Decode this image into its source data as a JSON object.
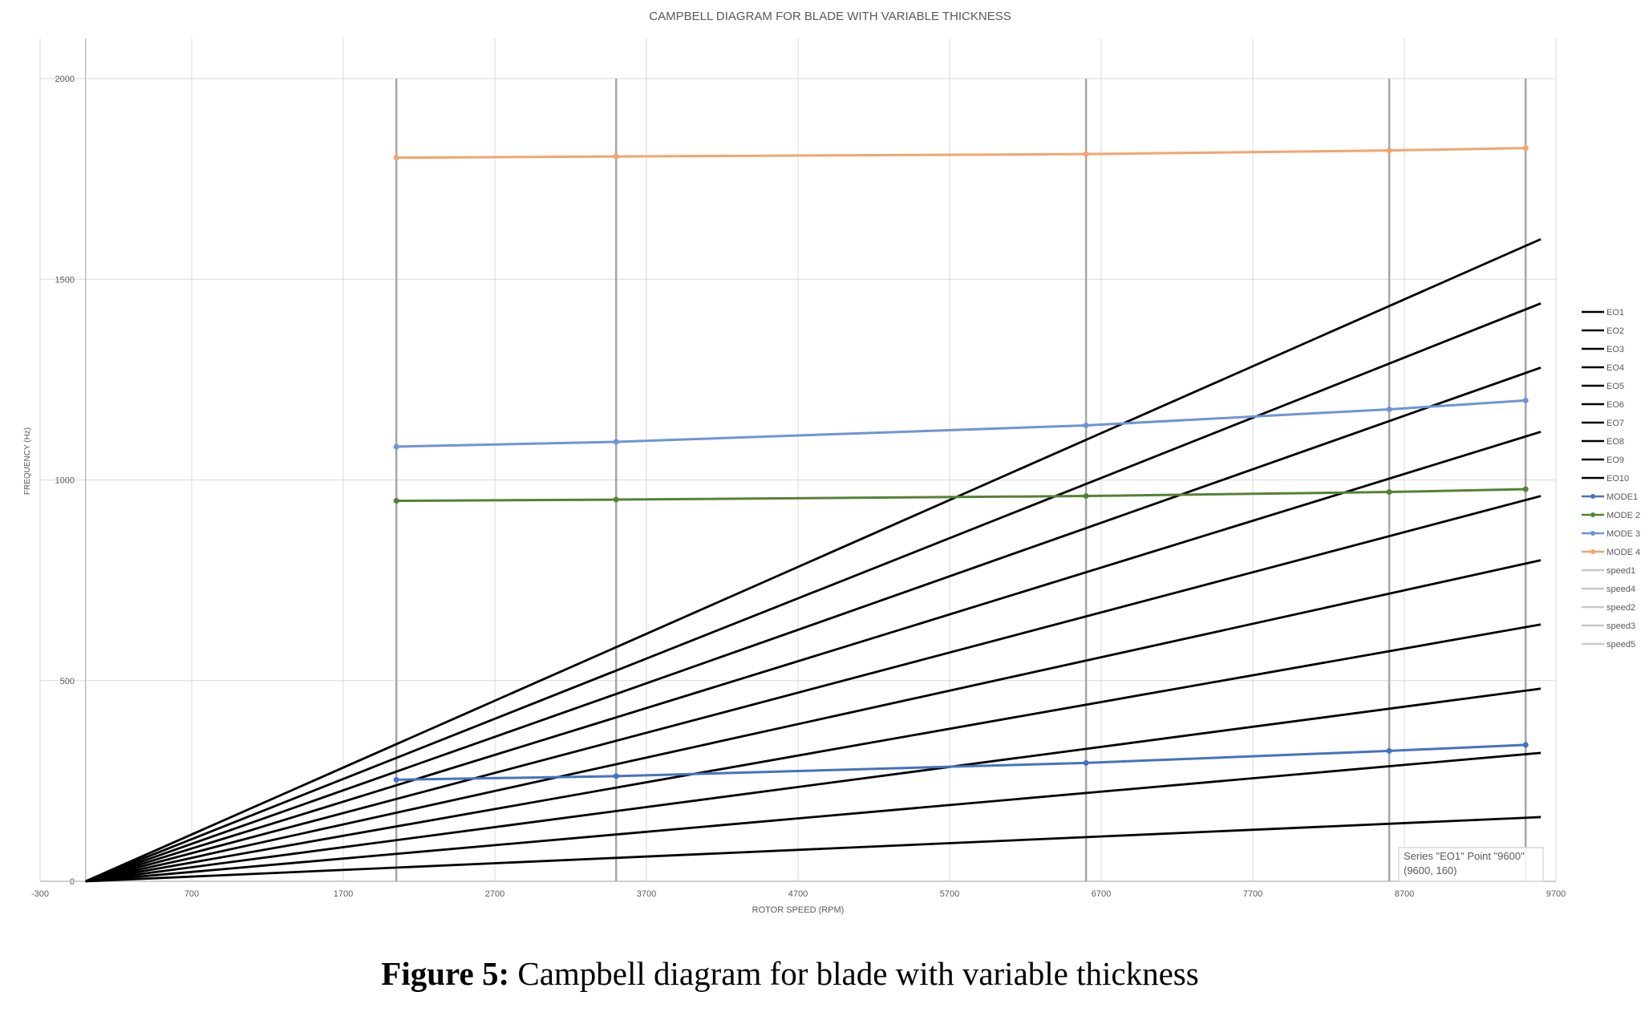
{
  "chart_data": {
    "type": "line",
    "title": "CAMPBELL DIAGRAM FOR BLADE WITH VARIABLE THICKNESS",
    "xlabel": "ROTOR SPEED (RPM)",
    "ylabel": "FREQUENCY (Hz)",
    "xlim": [
      -300,
      9700
    ],
    "ylim": [
      0,
      2100
    ],
    "x_ticks": [
      -300,
      700,
      1700,
      2700,
      3700,
      4700,
      5700,
      6700,
      7700,
      8700,
      9700
    ],
    "y_ticks": [
      0,
      500,
      1000,
      1500,
      2000
    ],
    "grid": true,
    "legend_position": "right",
    "engine_orders": {
      "x": [
        0,
        9600
      ],
      "series": [
        {
          "name": "EO1",
          "values": [
            0,
            160
          ],
          "color": "#000000"
        },
        {
          "name": "EO2",
          "values": [
            0,
            320
          ],
          "color": "#000000"
        },
        {
          "name": "EO3",
          "values": [
            0,
            480
          ],
          "color": "#000000"
        },
        {
          "name": "EO4",
          "values": [
            0,
            640
          ],
          "color": "#000000"
        },
        {
          "name": "EO5",
          "values": [
            0,
            800
          ],
          "color": "#000000"
        },
        {
          "name": "EO6",
          "values": [
            0,
            960
          ],
          "color": "#000000"
        },
        {
          "name": "EO7",
          "values": [
            0,
            1120
          ],
          "color": "#000000"
        },
        {
          "name": "EO8",
          "values": [
            0,
            1280
          ],
          "color": "#000000"
        },
        {
          "name": "EO9",
          "values": [
            0,
            1440
          ],
          "color": "#000000"
        },
        {
          "name": "EO10",
          "values": [
            0,
            1600
          ],
          "color": "#000000"
        }
      ]
    },
    "modes": {
      "x": [
        2050,
        3500,
        6600,
        8600,
        9500
      ],
      "series": [
        {
          "name": "MODE1",
          "values": [
            253,
            262,
            295,
            325,
            340
          ],
          "color": "#4472C4"
        },
        {
          "name": "MODE 2",
          "values": [
            948,
            951,
            960,
            970,
            977
          ],
          "color": "#548235"
        },
        {
          "name": "MODE 3",
          "values": [
            1083,
            1095,
            1136,
            1176,
            1198
          ],
          "color": "#6F93D6"
        },
        {
          "name": "MODE 4",
          "values": [
            1803,
            1806,
            1812,
            1821,
            1827
          ],
          "color": "#F4A46C"
        }
      ]
    },
    "speed_lines": {
      "ylim": [
        0,
        2000
      ],
      "series": [
        {
          "name": "speed1",
          "x": 2050,
          "color": "#A6A6A6"
        },
        {
          "name": "speed4",
          "x": 3500,
          "color": "#A6A6A6"
        },
        {
          "name": "speed2",
          "x": 6600,
          "color": "#A6A6A6"
        },
        {
          "name": "speed3",
          "x": 8600,
          "color": "#A6A6A6"
        },
        {
          "name": "speed5",
          "x": 9500,
          "color": "#A6A6A6"
        }
      ]
    },
    "tooltip": {
      "line1": "Series \"EO1\" Point \"9600\"",
      "line2": "(9600, 160)"
    }
  },
  "caption": {
    "label": "Figure 5:",
    "text": "Campbell diagram for blade with variable thickness"
  }
}
